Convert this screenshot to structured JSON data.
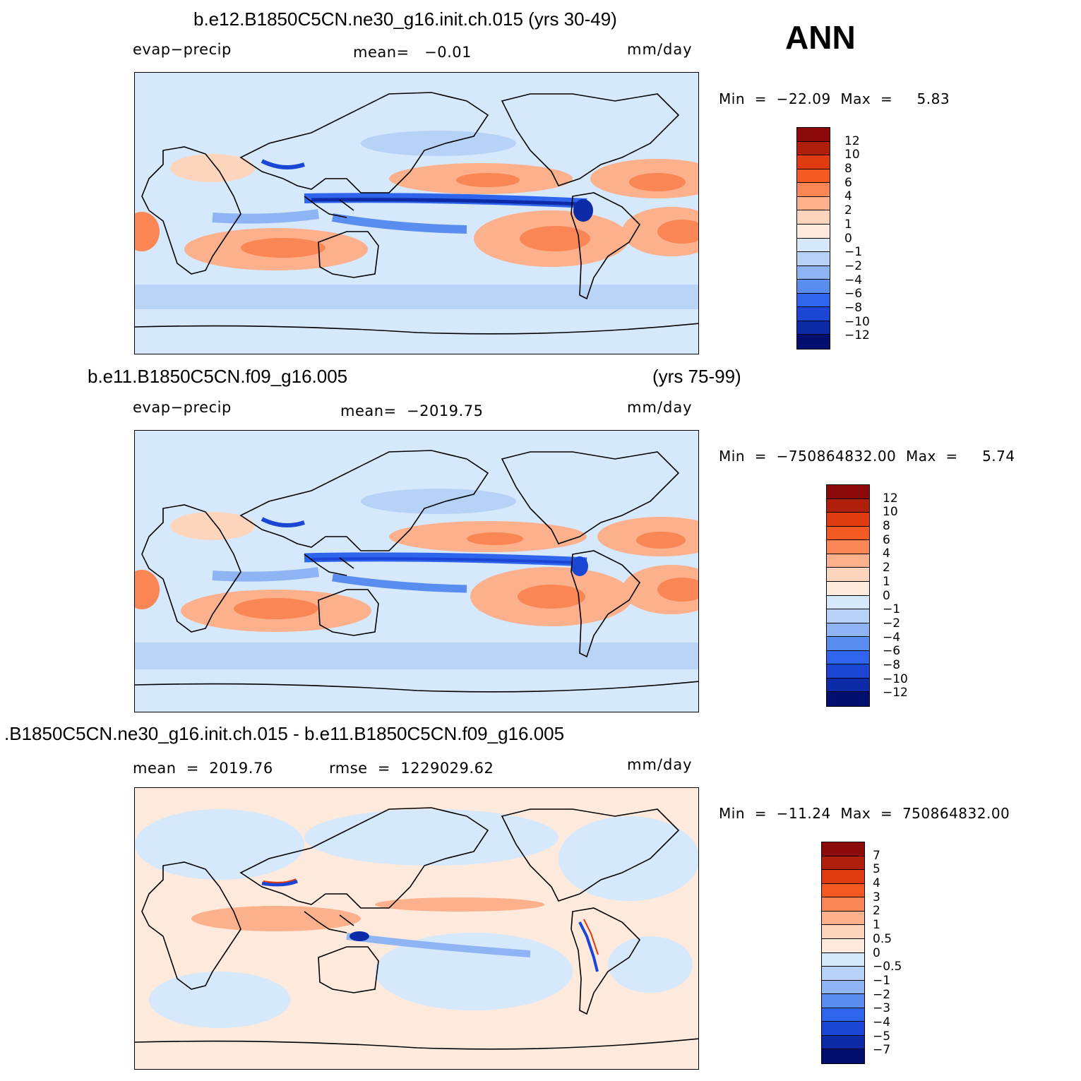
{
  "season": "ANN",
  "chart_data": [
    {
      "type": "heatmap",
      "title": "b.e12.B1850C5CN.ne30_g16.init.ch.015 (yrs 30-49)",
      "variable": "evap−precip",
      "mean_text": "mean=   −0.01",
      "units": "mm/day",
      "minmax_text": "Min  =  −22.09  Max  =     5.83",
      "min": -22.09,
      "max": 5.83,
      "mean": -0.01,
      "colorbar_levels": [
        "12",
        "10",
        "8",
        "6",
        "4",
        "2",
        "1",
        "0",
        "−1",
        "−2",
        "−4",
        "−6",
        "−8",
        "−10",
        "−12"
      ],
      "colorbar_colors": [
        "#8c0a0a",
        "#b01f0a",
        "#e03a10",
        "#f35a23",
        "#f98654",
        "#fcb08c",
        "#fdd5bd",
        "#fdeadc",
        "#d6e8fb",
        "#b7d2f7",
        "#8fb4f3",
        "#5a8df0",
        "#2f64ed",
        "#1b46d5",
        "#0d2ba7",
        "#020f6e"
      ]
    },
    {
      "type": "heatmap",
      "title": "b.e11.B1850C5CN.f09_g16.005",
      "title_right": "(yrs 75-99)",
      "variable": "evap−precip",
      "mean_text": "mean=  −2019.75",
      "units": "mm/day",
      "minmax_text": "Min  =  −750864832.00  Max  =     5.74",
      "min": -750864832.0,
      "max": 5.74,
      "mean": -2019.75,
      "colorbar_levels": [
        "12",
        "10",
        "8",
        "6",
        "4",
        "2",
        "1",
        "0",
        "−1",
        "−2",
        "−4",
        "−6",
        "−8",
        "−10",
        "−12"
      ],
      "colorbar_colors": [
        "#8c0a0a",
        "#b01f0a",
        "#e03a10",
        "#f35a23",
        "#f98654",
        "#fcb08c",
        "#fdd5bd",
        "#fdeadc",
        "#d6e8fb",
        "#b7d2f7",
        "#8fb4f3",
        "#5a8df0",
        "#2f64ed",
        "#1b46d5",
        "#0d2ba7",
        "#020f6e"
      ]
    },
    {
      "type": "heatmap",
      "title": ".B1850C5CN.ne30_g16.init.ch.015 - b.e11.B1850C5CN.f09_g16.005",
      "mean_text": "mean  =  2019.76",
      "rmse_text": "rmse  =  1229029.62",
      "units": "mm/day",
      "minmax_text": "Min  =  −11.24  Max  =  750864832.00",
      "min": -11.24,
      "max": 750864832.0,
      "mean": 2019.76,
      "rmse": 1229029.62,
      "colorbar_levels": [
        "7",
        "5",
        "4",
        "3",
        "2",
        "1",
        "0.5",
        "0",
        "−0.5",
        "−1",
        "−2",
        "−3",
        "−4",
        "−5",
        "−7"
      ],
      "colorbar_colors": [
        "#8c0a0a",
        "#b01f0a",
        "#e03a10",
        "#f35a23",
        "#f98654",
        "#fcb08c",
        "#fdd5bd",
        "#fdeadc",
        "#d6e8fb",
        "#b7d2f7",
        "#8fb4f3",
        "#5a8df0",
        "#2f64ed",
        "#1b46d5",
        "#0d2ba7",
        "#020f6e"
      ]
    }
  ]
}
